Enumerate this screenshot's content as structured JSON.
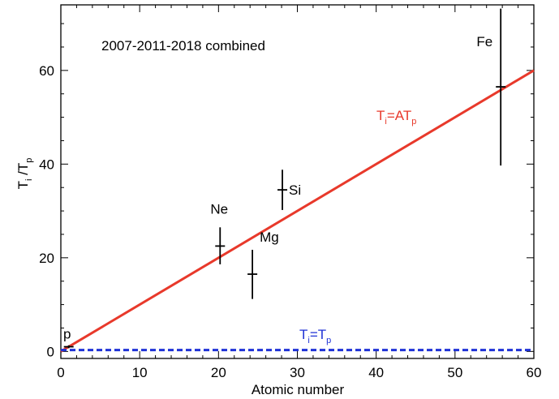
{
  "chart_data": {
    "type": "scatter",
    "annotation": "2007-2011-2018 combined",
    "xlabel": "Atomic number",
    "ylabel_main": "T",
    "ylabel_sub1": "i",
    "ylabel_mid": " /T",
    "ylabel_sub2": "p",
    "xlim": [
      0,
      60
    ],
    "ylim": [
      -1.5,
      74
    ],
    "xticks": [
      0,
      10,
      20,
      30,
      40,
      50,
      60
    ],
    "yticks": [
      0,
      20,
      40,
      60
    ],
    "grid": false,
    "points": [
      {
        "label": "p",
        "x": 1,
        "y": 1,
        "yerr_low": 0.3,
        "yerr_high": 0.3
      },
      {
        "label": "Ne",
        "x": 20.2,
        "y": 22.5,
        "yerr_low": 3.9,
        "yerr_high": 4.0
      },
      {
        "label": "Mg",
        "x": 24.3,
        "y": 16.5,
        "yerr_low": 5.3,
        "yerr_high": 5.2
      },
      {
        "label": "Si",
        "x": 28.1,
        "y": 34.5,
        "yerr_low": 4.3,
        "yerr_high": 4.3
      },
      {
        "label": "Fe",
        "x": 55.8,
        "y": 56.5,
        "yerr_low": 16.8,
        "yerr_high": 16.7
      }
    ],
    "lines": [
      {
        "name_main": "T",
        "name_sub1": "i",
        "name_mid": "=AT",
        "name_sub2": "p",
        "x": [
          0,
          60
        ],
        "y": [
          0,
          60
        ],
        "color": "#e8392b",
        "style": "solid"
      },
      {
        "name_main": "T",
        "name_sub1": "i",
        "name_mid": "=T",
        "name_sub2": "p",
        "x": [
          0,
          60
        ],
        "y": [
          0.3,
          0.3
        ],
        "color": "#1f32d6",
        "style": "dashed"
      }
    ]
  }
}
